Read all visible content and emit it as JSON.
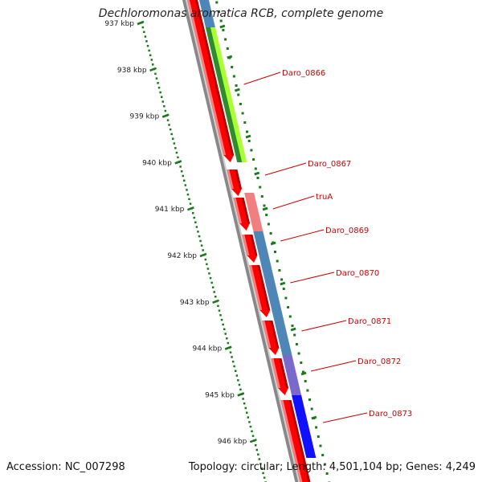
{
  "title": "Dechloromonas aromatica RCB, complete genome",
  "footer": {
    "accession": "Accession: NC_007298",
    "summary": "Topology: circular; Length: 4,501,104 bp; Genes: 4,249"
  },
  "ticks": [
    "937 kbp",
    "938 kbp",
    "939 kbp",
    "940 kbp",
    "941 kbp",
    "942 kbp",
    "943 kbp",
    "944 kbp",
    "945 kbp",
    "946 kbp"
  ],
  "gene_labels": [
    "Daro_0866",
    "Daro_0867",
    "truA",
    "Daro_0869",
    "Daro_0870",
    "Daro_0871",
    "Daro_0872",
    "Daro_0873"
  ],
  "colors": {
    "cds": "#ff0000",
    "label": "#cc0000",
    "ruler": "#1a7a1a",
    "backbone": "#888888",
    "cog_green_light": "#aaff33",
    "cog_green_dark": "#2e8b2e",
    "cog_pink": "#f08080",
    "cog_steel": "#4f86b8",
    "cog_purple": "#7b68cc",
    "cog_blue": "#1010ff"
  }
}
